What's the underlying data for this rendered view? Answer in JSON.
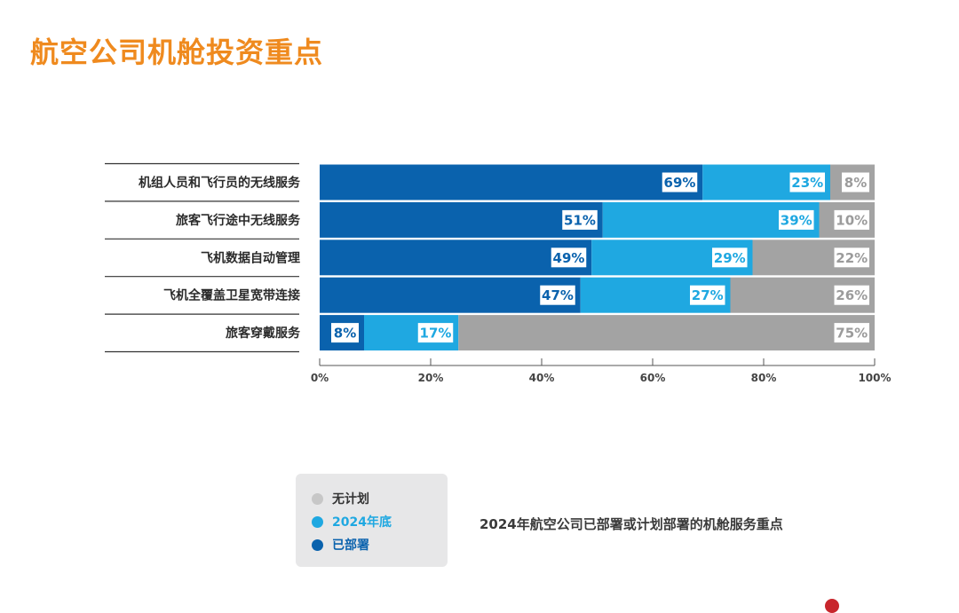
{
  "title": "航空公司机舱投资重点",
  "chart_data": {
    "type": "bar",
    "orientation": "horizontal",
    "stacked": true,
    "categories": [
      "机组人员和飞行员的无线服务",
      "旅客飞行途中无线服务",
      "飞机数据自动管理",
      "飞机全覆盖卫星宽带连接",
      "旅客穿戴服务"
    ],
    "series": [
      {
        "name": "已部署",
        "color": "#0a62ad",
        "label_color": "#0a62ad",
        "values": [
          69,
          51,
          49,
          47,
          8
        ]
      },
      {
        "name": "2024年底",
        "color": "#1fa8e1",
        "label_color": "#1fa8e1",
        "values": [
          23,
          39,
          29,
          27,
          17
        ]
      },
      {
        "name": "无计划",
        "color": "#a3a3a3",
        "label_color": "#9b9b9b",
        "values": [
          8,
          10,
          22,
          26,
          75
        ]
      }
    ],
    "xlim": [
      0,
      100
    ],
    "xticks": [
      "0%",
      "20%",
      "40%",
      "60%",
      "80%",
      "100%"
    ],
    "value_suffix": "%",
    "legend_position": "bottom-left",
    "subtitle": "2024年航空公司已部署或计划部署的机舱服务重点"
  },
  "legend": [
    {
      "label": "无计划",
      "color": "#c7c7c7",
      "text_color": "#333333"
    },
    {
      "label": "2024年底",
      "color": "#1fa8e1",
      "text_color": "#1fa8e1"
    },
    {
      "label": "已部署",
      "color": "#0a62ad",
      "text_color": "#0a62ad"
    }
  ]
}
